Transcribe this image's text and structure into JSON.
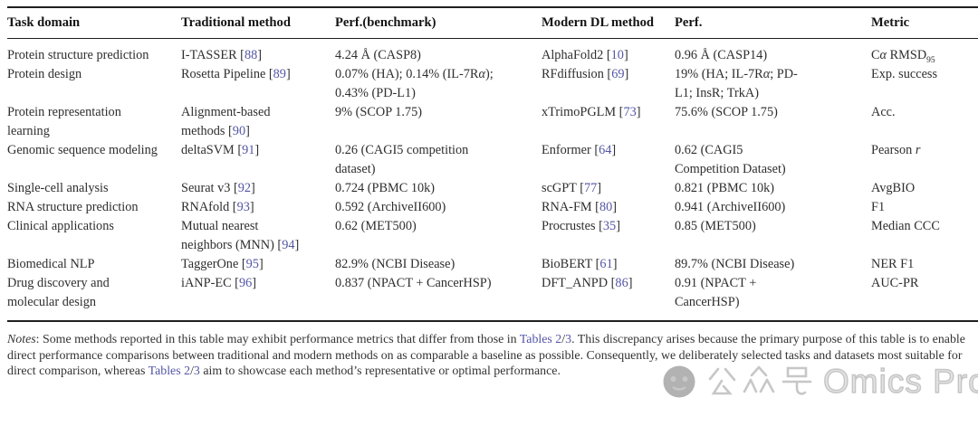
{
  "table": {
    "columns": [
      {
        "key": "task",
        "label": "Task domain"
      },
      {
        "key": "traditional",
        "label": "Traditional method"
      },
      {
        "key": "perf_benchmark",
        "label": "Perf.(benchmark)"
      },
      {
        "key": "modern",
        "label": "Modern DL method"
      },
      {
        "key": "perf",
        "label": "Perf."
      },
      {
        "key": "metric",
        "label": "Metric"
      }
    ],
    "rows": [
      {
        "task": [
          {
            "t": "Protein structure prediction"
          }
        ],
        "traditional": [
          {
            "t": "I-TASSER ["
          },
          {
            "t": "88",
            "s": "link"
          },
          {
            "t": "]"
          }
        ],
        "perf_benchmark": [
          {
            "t": "4.24 Å (CASP8)"
          }
        ],
        "modern": [
          {
            "t": "AlphaFold2 ["
          },
          {
            "t": "10",
            "s": "link"
          },
          {
            "t": "]"
          }
        ],
        "perf": [
          {
            "t": "0.96 Å (CASP14)"
          }
        ],
        "metric": [
          {
            "t": "C"
          },
          {
            "t": "α",
            "s": "i"
          },
          {
            "t": " RMSD"
          },
          {
            "t": "95",
            "s": "sub"
          }
        ]
      },
      {
        "task": [
          {
            "t": "Protein design"
          }
        ],
        "traditional": [
          {
            "t": "Rosetta Pipeline ["
          },
          {
            "t": "89",
            "s": "link"
          },
          {
            "t": "]"
          }
        ],
        "perf_benchmark": [
          {
            "t": "0.07% (HA); 0.14% (IL-7R"
          },
          {
            "t": "α",
            "s": "i"
          },
          {
            "t": "); 0.43% (PD-L1)"
          }
        ],
        "modern": [
          {
            "t": "RFdiffusion ["
          },
          {
            "t": "69",
            "s": "link"
          },
          {
            "t": "]"
          }
        ],
        "perf": [
          {
            "t": "19% (HA; IL-7R"
          },
          {
            "t": "α",
            "s": "i"
          },
          {
            "t": "; PD-L1; InsR; TrkA)"
          }
        ],
        "metric": [
          {
            "t": "Exp. success"
          }
        ]
      },
      {
        "task": [
          {
            "t": "Protein representation learning"
          }
        ],
        "traditional": [
          {
            "t": "Alignment-based methods ["
          },
          {
            "t": "90",
            "s": "link"
          },
          {
            "t": "]"
          }
        ],
        "perf_benchmark": [
          {
            "t": "9% (SCOP 1.75)"
          }
        ],
        "modern": [
          {
            "t": "xTrimoPGLM ["
          },
          {
            "t": "73",
            "s": "link"
          },
          {
            "t": "]"
          }
        ],
        "perf": [
          {
            "t": "75.6% (SCOP 1.75)"
          }
        ],
        "metric": [
          {
            "t": "Acc."
          }
        ]
      },
      {
        "task": [
          {
            "t": "Genomic sequence modeling"
          }
        ],
        "traditional": [
          {
            "t": "deltaSVM ["
          },
          {
            "t": "91",
            "s": "link"
          },
          {
            "t": "]"
          }
        ],
        "perf_benchmark": [
          {
            "t": "0.26 (CAGI5 competition dataset)"
          }
        ],
        "modern": [
          {
            "t": "Enformer ["
          },
          {
            "t": "64",
            "s": "link"
          },
          {
            "t": "]"
          }
        ],
        "perf": [
          {
            "t": "0.62 (CAGI5 Competition Dataset)"
          }
        ],
        "metric": [
          {
            "t": "Pearson "
          },
          {
            "t": "r",
            "s": "i"
          }
        ]
      },
      {
        "task": [
          {
            "t": "Single-cell analysis"
          }
        ],
        "traditional": [
          {
            "t": "Seurat v3 ["
          },
          {
            "t": "92",
            "s": "link"
          },
          {
            "t": "]"
          }
        ],
        "perf_benchmark": [
          {
            "t": "0.724 (PBMC 10k)"
          }
        ],
        "modern": [
          {
            "t": "scGPT ["
          },
          {
            "t": "77",
            "s": "link"
          },
          {
            "t": "]"
          }
        ],
        "perf": [
          {
            "t": "0.821 (PBMC 10k)"
          }
        ],
        "metric": [
          {
            "t": "AvgBIO"
          }
        ]
      },
      {
        "task": [
          {
            "t": "RNA structure prediction"
          }
        ],
        "traditional": [
          {
            "t": "RNAfold ["
          },
          {
            "t": "93",
            "s": "link"
          },
          {
            "t": "]"
          }
        ],
        "perf_benchmark": [
          {
            "t": "0.592 (ArchiveII600)"
          }
        ],
        "modern": [
          {
            "t": "RNA-FM ["
          },
          {
            "t": "80",
            "s": "link"
          },
          {
            "t": "]"
          }
        ],
        "perf": [
          {
            "t": "0.941 (ArchiveII600)"
          }
        ],
        "metric": [
          {
            "t": "F1"
          }
        ]
      },
      {
        "task": [
          {
            "t": "Clinical applications"
          }
        ],
        "traditional": [
          {
            "t": "Mutual nearest neighbors (MNN) ["
          },
          {
            "t": "94",
            "s": "link"
          },
          {
            "t": "]"
          }
        ],
        "perf_benchmark": [
          {
            "t": "0.62 (MET500)"
          }
        ],
        "modern": [
          {
            "t": "Procrustes ["
          },
          {
            "t": "35",
            "s": "link"
          },
          {
            "t": "]"
          }
        ],
        "perf": [
          {
            "t": "0.85 (MET500)"
          }
        ],
        "metric": [
          {
            "t": "Median CCC"
          }
        ]
      },
      {
        "task": [
          {
            "t": "Biomedical NLP"
          }
        ],
        "traditional": [
          {
            "t": "TaggerOne ["
          },
          {
            "t": "95",
            "s": "link"
          },
          {
            "t": "]"
          }
        ],
        "perf_benchmark": [
          {
            "t": "82.9% (NCBI Disease)"
          }
        ],
        "modern": [
          {
            "t": "BioBERT ["
          },
          {
            "t": "61",
            "s": "link"
          },
          {
            "t": "]"
          }
        ],
        "perf": [
          {
            "t": "89.7% (NCBI Disease)"
          }
        ],
        "metric": [
          {
            "t": "NER F1"
          }
        ]
      },
      {
        "task": [
          {
            "t": "Drug discovery and molecular design"
          }
        ],
        "traditional": [
          {
            "t": "iANP-EC ["
          },
          {
            "t": "96",
            "s": "link"
          },
          {
            "t": "]"
          }
        ],
        "perf_benchmark": [
          {
            "t": "0.837 (NPACT + CancerHSP)"
          }
        ],
        "modern": [
          {
            "t": "DFT_ANPD ["
          },
          {
            "t": "86",
            "s": "link"
          },
          {
            "t": "]"
          }
        ],
        "perf": [
          {
            "t": "0.91 (NPACT + CancerHSP)"
          }
        ],
        "metric": [
          {
            "t": "AUC-PR"
          }
        ]
      }
    ]
  },
  "notes": {
    "segments": [
      {
        "t": "Notes",
        "s": "i"
      },
      {
        "t": ": Some methods reported in this table may exhibit performance metrics that differ from those in "
      },
      {
        "t": "Tables 2",
        "s": "link"
      },
      {
        "t": "/"
      },
      {
        "t": "3",
        "s": "link"
      },
      {
        "t": ". This discrepancy arises because the primary purpose of this table is to enable direct performance comparisons between traditional and modern methods on as comparable a baseline as possible. Consequently, we deliberately selected tasks and datasets most suitable for direct comparison, whereas "
      },
      {
        "t": "Tables 2",
        "s": "link"
      },
      {
        "t": "/"
      },
      {
        "t": "3",
        "s": "link"
      },
      {
        "t": " aim to showcase each method’s representative or optimal performance."
      }
    ]
  },
  "watermark": {
    "text_cn": "公众号",
    "text_en": "Omics Pro"
  },
  "colors": {
    "link": "#5356a5",
    "rule": "#1f1f1f",
    "text": "#2e2e2e",
    "watermark_gray": "#a8a8a8"
  }
}
